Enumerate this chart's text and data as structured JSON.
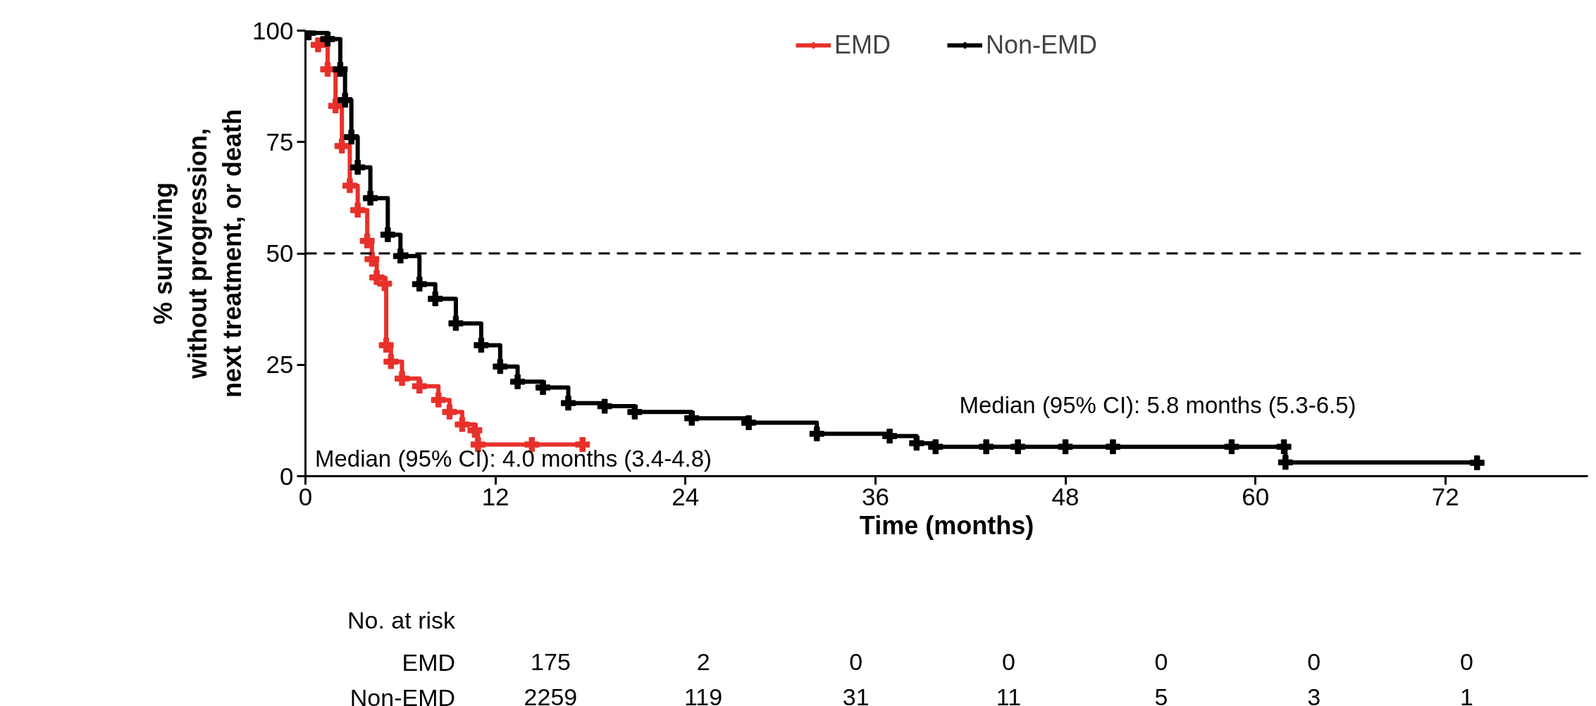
{
  "chart_data": {
    "type": "step",
    "xlabel": "Time (months)",
    "ylabel": "% surviving\nwithout progression,\nnext treatment, or death",
    "xlim": [
      0,
      81
    ],
    "xticks": [
      0,
      12,
      24,
      36,
      48,
      60,
      72
    ],
    "ylim": [
      0,
      100
    ],
    "yticks": [
      0,
      25,
      50,
      75,
      100
    ],
    "grid": false,
    "legend": "top",
    "marker": "cross",
    "line_style": "solid",
    "ref_lines": [
      {
        "axis": "y",
        "value": 50,
        "color": "#000000",
        "line_style": "dashed"
      }
    ],
    "series": [
      {
        "name": "EMD",
        "color": "#e8302a",
        "x": [
          0.8,
          1.4,
          1.9,
          2.3,
          2.8,
          3.3,
          3.9,
          4.2,
          4.5,
          5.0,
          5.1,
          5.4,
          6.1,
          7.2,
          8.4,
          9.1,
          9.9,
          10.7,
          10.9,
          14.3,
          17.5
        ],
        "values": [
          96.8,
          91.3,
          83.1,
          74.1,
          65.2,
          59.7,
          52.8,
          48.7,
          44.6,
          43.2,
          29.4,
          25.7,
          21.9,
          20.2,
          17.1,
          14.4,
          11.6,
          10.3,
          7.1,
          7.1,
          7.1
        ]
      },
      {
        "name": "Non-EMD",
        "color": "#000000",
        "x": [
          0,
          0.2,
          1.4,
          2.2,
          2.5,
          2.9,
          3.3,
          4.1,
          5.2,
          6.0,
          7.2,
          8.2,
          9.5,
          11.1,
          12.3,
          13.4,
          15.0,
          16.6,
          18.9,
          20.8,
          24.4,
          28.0,
          32.3,
          36.9,
          38.6,
          39.8,
          43.0,
          45.0,
          48.0,
          51.0,
          58.5,
          61.8,
          61.9,
          74.0
        ],
        "values": [
          100,
          99.5,
          98.1,
          91.3,
          84.4,
          76.1,
          69.3,
          62.4,
          54.2,
          49.4,
          43.1,
          39.8,
          34.3,
          29.4,
          24.6,
          21.2,
          19.9,
          16.4,
          15.7,
          14.4,
          13.0,
          12.0,
          9.5,
          9.0,
          7.4,
          6.6,
          6.6,
          6.6,
          6.6,
          6.6,
          6.6,
          6.6,
          3.1,
          3.0
        ]
      }
    ],
    "annotations": [
      "Median (95% CI): 4.0 months (3.4-4.8)",
      "Median (95% CI): 5.8 months (5.3-6.5)",
      "No. at risk",
      "EMD",
      "175",
      "2",
      "0",
      "0",
      "0",
      "0",
      "0",
      "Non-EMD",
      "2259",
      "119",
      "31",
      "11",
      "5",
      "3",
      "1"
    ]
  }
}
